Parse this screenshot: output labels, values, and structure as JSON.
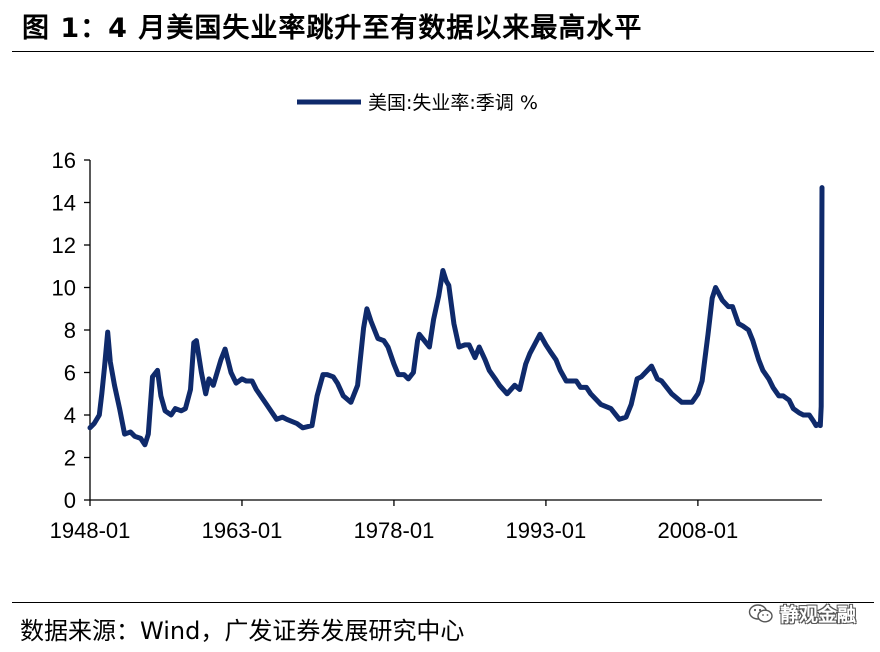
{
  "header": {
    "title": "图 1：4 月美国失业率跳升至有数据以来最高水平"
  },
  "footer": {
    "source": "数据来源：Wind，广发证券发展研究中心",
    "watermark": "静观金融",
    "watermark_icon": "wechat-icon"
  },
  "chart_data": {
    "type": "line",
    "legend_position": "top-center",
    "grid": false,
    "ylim": [
      0,
      16
    ],
    "yticks": [
      "0",
      "2",
      "4",
      "6",
      "8",
      "10",
      "12",
      "14",
      "16"
    ],
    "xlim": [
      "1948-01",
      "2020-04"
    ],
    "xticks": [
      "1948-01",
      "1963-01",
      "1978-01",
      "1993-01",
      "2008-01"
    ],
    "series": [
      {
        "name": "美国:失业率:季调 %",
        "color": "#0f2a6b",
        "points": [
          [
            "1948-01",
            3.4
          ],
          [
            "1948-06",
            3.6
          ],
          [
            "1948-12",
            4.0
          ],
          [
            "1949-03",
            5.0
          ],
          [
            "1949-06",
            6.2
          ],
          [
            "1949-10",
            7.9
          ],
          [
            "1950-01",
            6.5
          ],
          [
            "1950-06",
            5.4
          ],
          [
            "1950-12",
            4.3
          ],
          [
            "1951-06",
            3.1
          ],
          [
            "1952-01",
            3.2
          ],
          [
            "1952-06",
            3.0
          ],
          [
            "1953-01",
            2.9
          ],
          [
            "1953-06",
            2.6
          ],
          [
            "1953-10",
            3.1
          ],
          [
            "1954-03",
            5.8
          ],
          [
            "1954-09",
            6.1
          ],
          [
            "1955-01",
            4.9
          ],
          [
            "1955-06",
            4.2
          ],
          [
            "1956-01",
            4.0
          ],
          [
            "1956-06",
            4.3
          ],
          [
            "1957-01",
            4.2
          ],
          [
            "1957-06",
            4.3
          ],
          [
            "1957-12",
            5.2
          ],
          [
            "1958-04",
            7.4
          ],
          [
            "1958-07",
            7.5
          ],
          [
            "1959-01",
            6.0
          ],
          [
            "1959-06",
            5.0
          ],
          [
            "1959-10",
            5.7
          ],
          [
            "1960-03",
            5.4
          ],
          [
            "1960-12",
            6.6
          ],
          [
            "1961-05",
            7.1
          ],
          [
            "1961-12",
            6.0
          ],
          [
            "1962-06",
            5.5
          ],
          [
            "1963-01",
            5.7
          ],
          [
            "1963-06",
            5.6
          ],
          [
            "1964-01",
            5.6
          ],
          [
            "1964-06",
            5.2
          ],
          [
            "1965-06",
            4.5
          ],
          [
            "1966-06",
            3.8
          ],
          [
            "1967-01",
            3.9
          ],
          [
            "1967-06",
            3.8
          ],
          [
            "1968-06",
            3.6
          ],
          [
            "1969-01",
            3.4
          ],
          [
            "1969-12",
            3.5
          ],
          [
            "1970-06",
            4.9
          ],
          [
            "1971-01",
            5.9
          ],
          [
            "1971-06",
            5.9
          ],
          [
            "1972-01",
            5.8
          ],
          [
            "1972-06",
            5.5
          ],
          [
            "1973-01",
            4.9
          ],
          [
            "1973-10",
            4.6
          ],
          [
            "1974-06",
            5.4
          ],
          [
            "1975-01",
            8.1
          ],
          [
            "1975-05",
            9.0
          ],
          [
            "1975-10",
            8.4
          ],
          [
            "1976-06",
            7.6
          ],
          [
            "1977-01",
            7.5
          ],
          [
            "1977-06",
            7.2
          ],
          [
            "1978-01",
            6.4
          ],
          [
            "1978-06",
            5.9
          ],
          [
            "1979-01",
            5.9
          ],
          [
            "1979-06",
            5.7
          ],
          [
            "1979-12",
            6.0
          ],
          [
            "1980-05",
            7.5
          ],
          [
            "1980-07",
            7.8
          ],
          [
            "1981-01",
            7.5
          ],
          [
            "1981-07",
            7.2
          ],
          [
            "1981-12",
            8.5
          ],
          [
            "1982-06",
            9.6
          ],
          [
            "1982-11",
            10.8
          ],
          [
            "1983-03",
            10.3
          ],
          [
            "1983-06",
            10.1
          ],
          [
            "1983-12",
            8.3
          ],
          [
            "1984-06",
            7.2
          ],
          [
            "1985-01",
            7.3
          ],
          [
            "1985-06",
            7.3
          ],
          [
            "1986-01",
            6.7
          ],
          [
            "1986-06",
            7.2
          ],
          [
            "1987-01",
            6.6
          ],
          [
            "1987-06",
            6.1
          ],
          [
            "1988-01",
            5.7
          ],
          [
            "1988-06",
            5.4
          ],
          [
            "1989-03",
            5.0
          ],
          [
            "1989-12",
            5.4
          ],
          [
            "1990-06",
            5.2
          ],
          [
            "1991-01",
            6.4
          ],
          [
            "1991-06",
            6.9
          ],
          [
            "1992-06",
            7.8
          ],
          [
            "1993-01",
            7.3
          ],
          [
            "1993-06",
            7.0
          ],
          [
            "1994-01",
            6.6
          ],
          [
            "1994-06",
            6.1
          ],
          [
            "1995-01",
            5.6
          ],
          [
            "1995-06",
            5.6
          ],
          [
            "1996-01",
            5.6
          ],
          [
            "1996-06",
            5.3
          ],
          [
            "1997-01",
            5.3
          ],
          [
            "1997-06",
            5.0
          ],
          [
            "1998-06",
            4.5
          ],
          [
            "1999-06",
            4.3
          ],
          [
            "2000-04",
            3.8
          ],
          [
            "2000-12",
            3.9
          ],
          [
            "2001-06",
            4.5
          ],
          [
            "2002-01",
            5.7
          ],
          [
            "2002-06",
            5.8
          ],
          [
            "2003-06",
            6.3
          ],
          [
            "2004-01",
            5.7
          ],
          [
            "2004-06",
            5.6
          ],
          [
            "2005-06",
            5.0
          ],
          [
            "2006-06",
            4.6
          ],
          [
            "2007-01",
            4.6
          ],
          [
            "2007-06",
            4.6
          ],
          [
            "2008-01",
            5.0
          ],
          [
            "2008-06",
            5.6
          ],
          [
            "2009-01",
            7.8
          ],
          [
            "2009-06",
            9.5
          ],
          [
            "2009-10",
            10.0
          ],
          [
            "2010-06",
            9.4
          ],
          [
            "2011-01",
            9.1
          ],
          [
            "2011-06",
            9.1
          ],
          [
            "2012-01",
            8.3
          ],
          [
            "2012-06",
            8.2
          ],
          [
            "2013-01",
            8.0
          ],
          [
            "2013-06",
            7.5
          ],
          [
            "2014-01",
            6.6
          ],
          [
            "2014-06",
            6.1
          ],
          [
            "2015-01",
            5.7
          ],
          [
            "2015-06",
            5.3
          ],
          [
            "2016-01",
            4.9
          ],
          [
            "2016-06",
            4.9
          ],
          [
            "2017-01",
            4.7
          ],
          [
            "2017-06",
            4.3
          ],
          [
            "2018-01",
            4.1
          ],
          [
            "2018-06",
            4.0
          ],
          [
            "2019-01",
            4.0
          ],
          [
            "2019-06",
            3.7
          ],
          [
            "2019-09",
            3.5
          ],
          [
            "2020-01",
            3.6
          ],
          [
            "2020-02",
            3.5
          ],
          [
            "2020-03",
            4.4
          ],
          [
            "2020-04",
            14.7
          ]
        ]
      }
    ]
  }
}
